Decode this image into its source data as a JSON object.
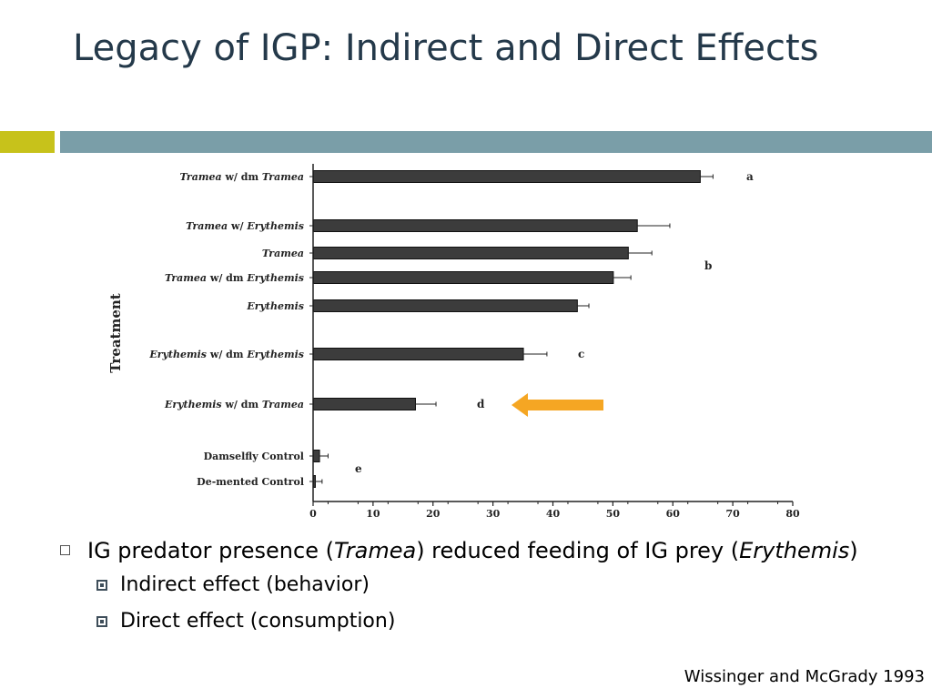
{
  "slide": {
    "title": "Legacy of IGP: Indirect and Direct Effects",
    "accent_left_color": "#c7c21b",
    "accent_right_color": "#7a9ea8",
    "arrow_color": "#f5a623",
    "bullet1": {
      "text_a": "IG predator presence (",
      "italic_a": "Tramea",
      "text_b": ") reduced feeding of IG prey (",
      "italic_b": "Erythemis",
      "text_c": ")"
    },
    "sub_bullets": [
      "Indirect effect (behavior)",
      "Direct effect (consumption)"
    ],
    "citation": "Wissinger and McGrady 1993"
  },
  "chart_data": {
    "type": "bar",
    "orientation": "horizontal",
    "ylabel": "Treatment",
    "xlabel": "",
    "xlim": [
      0,
      80
    ],
    "xticks": [
      0,
      10,
      20,
      30,
      40,
      50,
      60,
      70,
      80
    ],
    "grid": false,
    "categories": [
      {
        "parts": [
          [
            "Tramea",
            true
          ],
          [
            "  w/  dm ",
            false
          ],
          [
            "Tramea",
            true
          ]
        ]
      },
      {
        "parts": [
          [
            "Tramea",
            true
          ],
          [
            "  w/  ",
            false
          ],
          [
            "Erythemis",
            true
          ]
        ]
      },
      {
        "parts": [
          [
            "Tramea",
            true
          ]
        ]
      },
      {
        "parts": [
          [
            "Tramea",
            true
          ],
          [
            "  w/  dm  ",
            false
          ],
          [
            "Erythemis",
            true
          ]
        ]
      },
      {
        "parts": [
          [
            "Erythemis",
            true
          ]
        ]
      },
      {
        "parts": [
          [
            "Erythemis",
            true
          ],
          [
            "  w/  dm  ",
            false
          ],
          [
            "Erythemis",
            true
          ]
        ]
      },
      {
        "parts": [
          [
            "Erythemis",
            true
          ],
          [
            "  w/  dm  ",
            false
          ],
          [
            "Tramea",
            true
          ]
        ]
      },
      {
        "parts": [
          [
            "Damselfly Control",
            false
          ]
        ]
      },
      {
        "parts": [
          [
            "De-mented Control",
            false
          ]
        ]
      }
    ],
    "values": [
      64.5,
      54,
      52.5,
      50,
      44,
      35,
      17,
      1,
      0.3
    ],
    "errors": [
      2.2,
      5.5,
      4,
      3,
      2,
      4,
      3.5,
      1.5,
      1.2
    ],
    "group_letters": [
      {
        "letter": "a",
        "rows": [
          0
        ]
      },
      {
        "letter": "b",
        "rows": [
          1,
          2,
          3,
          4
        ]
      },
      {
        "letter": "c",
        "rows": [
          5
        ]
      },
      {
        "letter": "d",
        "rows": [
          6
        ]
      },
      {
        "letter": "e",
        "rows": [
          7,
          8
        ]
      }
    ],
    "annotation": {
      "type": "arrow",
      "points_to_row": 6,
      "direction": "left"
    }
  }
}
